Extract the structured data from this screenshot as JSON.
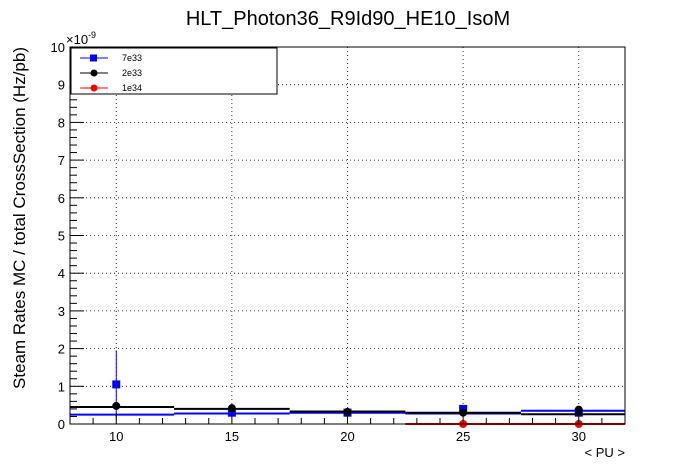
{
  "chart_data": {
    "type": "scatter",
    "title": "HLT_Photon36_R9Id90_HE10_IsoM",
    "xlabel": "< PU >",
    "ylabel": "Steam Rates MC / total CrossSection (Hz/pb)",
    "y_exponent_label": "×10",
    "y_exponent_power": "-9",
    "xlim": [
      8,
      32
    ],
    "ylim": [
      0,
      10
    ],
    "x_ticks": [
      10,
      15,
      20,
      25,
      30
    ],
    "x_tick_labels": [
      "10",
      "15",
      "20",
      "25",
      "30"
    ],
    "y_ticks": [
      0,
      1,
      2,
      3,
      4,
      5,
      6,
      7,
      8,
      9,
      10
    ],
    "y_tick_labels": [
      "0",
      "1",
      "2",
      "3",
      "4",
      "5",
      "6",
      "7",
      "8",
      "9",
      "10"
    ],
    "grid": true,
    "legend_position": "top-left",
    "series": [
      {
        "name": "7e33",
        "color": "#0000ff",
        "marker": "square",
        "points": [
          {
            "x": 10,
            "y": 1.05,
            "err": 0.9
          },
          {
            "x": 15,
            "y": 0.3,
            "err": 0.05
          },
          {
            "x": 20,
            "y": 0.3,
            "err": 0.05
          },
          {
            "x": 25,
            "y": 0.4,
            "err": 0.05
          },
          {
            "x": 30,
            "y": 0.3,
            "err": 0.05
          }
        ],
        "steps": [
          {
            "x0": 8,
            "x1": 12.5,
            "y": 0.25
          },
          {
            "x0": 12.5,
            "x1": 17.5,
            "y": 0.28
          },
          {
            "x0": 17.5,
            "x1": 22.5,
            "y": 0.3
          },
          {
            "x0": 22.5,
            "x1": 27.5,
            "y": 0.28
          },
          {
            "x0": 27.5,
            "x1": 32,
            "y": 0.35
          }
        ]
      },
      {
        "name": "2e33",
        "color": "#000000",
        "marker": "circle",
        "points": [
          {
            "x": 10,
            "y": 0.48,
            "err": 0.05
          },
          {
            "x": 15,
            "y": 0.42,
            "err": 0.04
          },
          {
            "x": 20,
            "y": 0.32,
            "err": 0.04
          },
          {
            "x": 25,
            "y": 0.3,
            "err": 0.04
          },
          {
            "x": 30,
            "y": 0.38,
            "err": 0.04
          }
        ],
        "steps": [
          {
            "x0": 8,
            "x1": 12.5,
            "y": 0.45
          },
          {
            "x0": 12.5,
            "x1": 17.5,
            "y": 0.4
          },
          {
            "x0": 17.5,
            "x1": 22.5,
            "y": 0.33
          },
          {
            "x0": 22.5,
            "x1": 27.5,
            "y": 0.3
          },
          {
            "x0": 27.5,
            "x1": 32,
            "y": 0.26
          }
        ]
      },
      {
        "name": "1e34",
        "color": "#ff0000",
        "marker": "circle",
        "points": [
          {
            "x": 25,
            "y": 0.0,
            "err": 0
          },
          {
            "x": 30,
            "y": 0.0,
            "err": 0
          }
        ],
        "steps": [
          {
            "x0": 22.5,
            "x1": 27.5,
            "y": 0.0
          },
          {
            "x0": 27.5,
            "x1": 32,
            "y": 0.0
          }
        ]
      }
    ]
  }
}
